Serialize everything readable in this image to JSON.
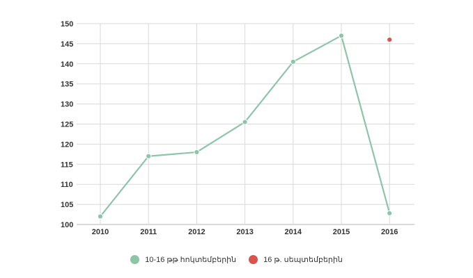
{
  "chart_data": {
    "type": "line",
    "categories": [
      "2010",
      "2011",
      "2012",
      "2013",
      "2014",
      "2015",
      "2016"
    ],
    "ylim": [
      100,
      150
    ],
    "yticks": [
      100,
      105,
      110,
      115,
      120,
      125,
      130,
      135,
      140,
      145,
      150
    ],
    "grid": true,
    "legend_position": "bottom-center",
    "series": [
      {
        "name": "10-16 թթ հոկտեմբերին",
        "color": "#8dc5a8",
        "values": [
          102.0,
          117.0,
          118.0,
          125.5,
          140.5,
          147.0,
          102.8
        ]
      },
      {
        "name": "16 թ. սեպտեմբերին",
        "color": "#d9534f",
        "points": [
          {
            "x": "2016",
            "y": 146.0
          }
        ]
      }
    ]
  }
}
